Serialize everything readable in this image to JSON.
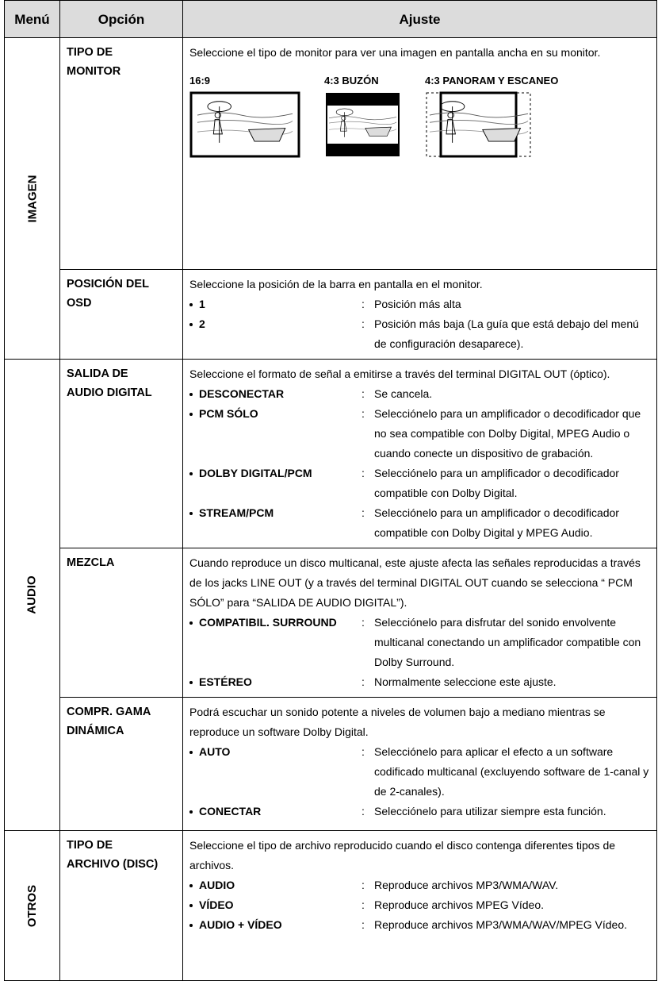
{
  "header": {
    "menu": "Menú",
    "option": "Opción",
    "setting": "Ajuste"
  },
  "separator": ":",
  "groups": [
    {
      "menu": "IMAGEN",
      "rows": [
        {
          "option": [
            "TIPO DE",
            "MONITOR"
          ],
          "intro": "Seleccione el tipo de monitor para ver una imagen en pantalla ancha en su monitor.",
          "images": [
            "16:9",
            "4:3 BUZÓN",
            "4:3 PANORAM  Y  ESCANEO"
          ],
          "items": []
        },
        {
          "option": [
            "POSICIÓN DEL",
            "OSD"
          ],
          "intro": "Seleccione la posición de la barra en pantalla en el monitor.",
          "items": [
            {
              "key": "1",
              "desc": "Posición más alta"
            },
            {
              "key": "2",
              "desc": "Posición más baja (La guía que está debajo del menú de configuración desaparece)."
            }
          ]
        }
      ]
    },
    {
      "menu": "AUDIO",
      "rows": [
        {
          "option": [
            "SALIDA DE",
            "AUDIO DIGITAL"
          ],
          "intro": "Seleccione el formato de señal a emitirse a través del terminal DIGITAL OUT (óptico).",
          "items": [
            {
              "key": "DESCONECTAR",
              "desc": "Se cancela."
            },
            {
              "key": "PCM SÓLO",
              "desc": "Selecciónelo para un amplificador o decodificador que no sea compatible con Dolby Digital, MPEG Audio o cuando conecte un dispositivo de grabación."
            },
            {
              "key": "DOLBY DIGITAL/PCM",
              "desc": "Selecciónelo para un amplificador o decodificador compatible con Dolby Digital."
            },
            {
              "key": "STREAM/PCM",
              "desc": "Selecciónelo para un amplificador o decodificador compatible con Dolby Digital y MPEG Audio."
            }
          ]
        },
        {
          "option": [
            "MEZCLA"
          ],
          "intro": "Cuando reproduce un disco multicanal, este ajuste afecta las señales reproducidas a través de los jacks LINE OUT (y a través del terminal DIGITAL OUT cuando se selecciona “ PCM SÓLO” para “SALIDA DE AUDIO DIGITAL”).",
          "items": [
            {
              "key": "COMPATIBIL. SURROUND",
              "desc": "Selecciónelo para disfrutar del sonido envolvente multicanal conectando un amplificador compatible con Dolby Surround."
            },
            {
              "key": "ESTÉREO",
              "desc": "Normalmente seleccione este ajuste."
            }
          ]
        },
        {
          "option": [
            "COMPR. GAMA",
            "DINÁMICA"
          ],
          "intro": "Podrá escuchar un sonido potente a niveles de volumen bajo a mediano mientras se reproduce un software Dolby Digital.",
          "items": [
            {
              "key": "AUTO",
              "desc": "Selecciónelo para aplicar el efecto a un software codificado multicanal (excluyendo software de 1-canal y de 2-canales)."
            },
            {
              "key": "CONECTAR",
              "desc": "Selecciónelo para utilizar siempre esta función."
            }
          ]
        }
      ]
    },
    {
      "menu": "OTROS",
      "rows": [
        {
          "option": [
            "TIPO DE",
            "ARCHIVO (DISC)"
          ],
          "intro": "Seleccione el tipo de archivo reproducido cuando el disco contenga diferentes tipos de archivos.",
          "items": [
            {
              "key": "AUDIO",
              "desc": "Reproduce archivos MP3/WMA/WAV."
            },
            {
              "key": "VÍDEO",
              "desc": "Reproduce archivos MPEG Vídeo."
            },
            {
              "key": "AUDIO + VÍDEO",
              "desc": "Reproduce archivos MP3/WMA/WAV/MPEG Vídeo."
            }
          ]
        }
      ]
    }
  ]
}
